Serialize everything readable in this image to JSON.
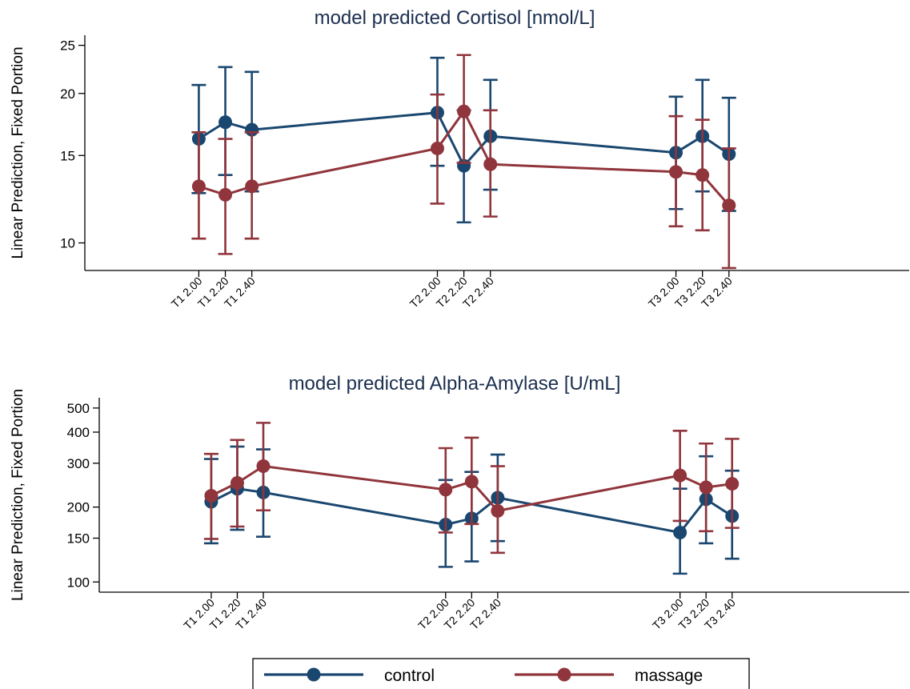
{
  "chart_data": [
    {
      "type": "line",
      "title": "model predicted Cortisol [nmol/L]",
      "ylabel": "Linear Prediction, Fixed Portion",
      "yscale": "log",
      "ylim": [
        8.8,
        26.2
      ],
      "yticks": [
        10,
        15,
        20,
        25
      ],
      "x": [
        1,
        2,
        3,
        10,
        11,
        12,
        19,
        20,
        21
      ],
      "xlim": [
        -3.3,
        27.8
      ],
      "categories": [
        "T1 2.00",
        "T1 2.20",
        "T1 2.40",
        "T2 2.00",
        "T2 2.20",
        "T2 2.40",
        "T3 2.00",
        "T3 2.20",
        "T3 2.40"
      ],
      "series": [
        {
          "name": "control",
          "color": "#1a476f",
          "values": [
            16.2,
            17.5,
            16.9,
            18.3,
            14.3,
            16.4,
            15.2,
            16.4,
            15.1
          ],
          "lower": [
            12.6,
            13.7,
            12.7,
            14.3,
            11.0,
            12.8,
            11.7,
            12.7,
            11.6
          ],
          "upper": [
            20.8,
            22.6,
            22.1,
            23.6,
            18.5,
            21.3,
            19.7,
            21.3,
            19.6
          ]
        },
        {
          "name": "massage",
          "color": "#90353b",
          "values": [
            13.0,
            12.5,
            13.0,
            15.5,
            18.4,
            14.4,
            13.9,
            13.7,
            11.9
          ],
          "lower": [
            10.2,
            9.5,
            10.2,
            12.0,
            14.5,
            11.3,
            10.8,
            10.6,
            8.9
          ],
          "upper": [
            16.7,
            16.2,
            16.7,
            19.9,
            23.9,
            18.5,
            18.0,
            17.7,
            15.5
          ]
        }
      ]
    },
    {
      "type": "line",
      "title": "model predicted Alpha-Amylase [U/mL]",
      "ylabel": "Linear Prediction, Fixed Portion",
      "yscale": "log",
      "ylim": [
        91,
        550
      ],
      "yticks": [
        100,
        150,
        200,
        300,
        400,
        500
      ],
      "x": [
        1,
        2,
        3,
        10,
        11,
        12,
        19,
        20,
        21
      ],
      "xlim": [
        -3.3,
        27.8
      ],
      "categories": [
        "T1 2.00",
        "T1 2.20",
        "T1 2.40",
        "T2 2.00",
        "T2 2.20",
        "T2 2.40",
        "T3 2.00",
        "T3 2.20",
        "T3 2.40"
      ],
      "series": [
        {
          "name": "control",
          "color": "#1a476f",
          "values": [
            210,
            237,
            229,
            170,
            180,
            218,
            158,
            215,
            184
          ],
          "lower": [
            143,
            162,
            152,
            115,
            121,
            146,
            108,
            143,
            124
          ],
          "upper": [
            312,
            350,
            341,
            257,
            277,
            325,
            237,
            320,
            280
          ]
        },
        {
          "name": "massage",
          "color": "#90353b",
          "values": [
            222,
            250,
            292,
            235,
            253,
            193,
            268,
            240,
            248
          ],
          "lower": [
            149,
            167,
            194,
            158,
            171,
            131,
            176,
            160,
            165
          ],
          "upper": [
            327,
            372,
            436,
            345,
            380,
            292,
            405,
            360,
            376
          ]
        }
      ]
    }
  ],
  "legend": {
    "items": [
      {
        "label": "control",
        "color": "#1a476f"
      },
      {
        "label": "massage",
        "color": "#90353b"
      }
    ],
    "position": "bottom"
  }
}
